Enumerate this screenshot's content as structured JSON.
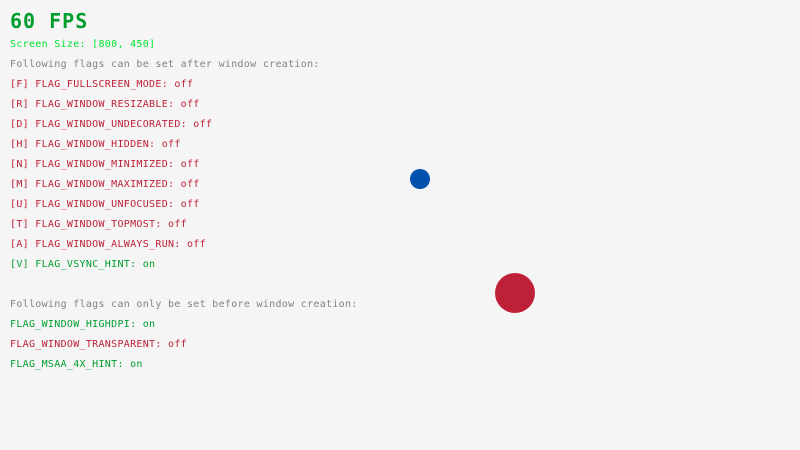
{
  "fps": "60 FPS",
  "screen_size": "Screen Size: [800, 450]",
  "after_header": "Following flags can be set after window creation:",
  "after_flags": [
    {
      "text": "[F] FLAG_FULLSCREEN_MODE: off",
      "state": "off"
    },
    {
      "text": "[R] FLAG_WINDOW_RESIZABLE: off",
      "state": "off"
    },
    {
      "text": "[D] FLAG_WINDOW_UNDECORATED: off",
      "state": "off"
    },
    {
      "text": "[H] FLAG_WINDOW_HIDDEN: off",
      "state": "off"
    },
    {
      "text": "[N] FLAG_WINDOW_MINIMIZED: off",
      "state": "off"
    },
    {
      "text": "[M] FLAG_WINDOW_MAXIMIZED: off",
      "state": "off"
    },
    {
      "text": "[U] FLAG_WINDOW_UNFOCUSED: off",
      "state": "off"
    },
    {
      "text": "[T] FLAG_WINDOW_TOPMOST: off",
      "state": "off"
    },
    {
      "text": "[A] FLAG_WINDOW_ALWAYS_RUN: off",
      "state": "off"
    },
    {
      "text": "[V] FLAG_VSYNC_HINT: on",
      "state": "on"
    }
  ],
  "before_header": "Following flags can only be set before window creation:",
  "before_flags": [
    {
      "text": "FLAG_WINDOW_HIGHDPI: on",
      "state": "on"
    },
    {
      "text": "FLAG_WINDOW_TRANSPARENT: off",
      "state": "off"
    },
    {
      "text": "FLAG_MSAA_4X_HINT: on",
      "state": "on"
    }
  ],
  "colors": {
    "on": "#009e2f",
    "off": "#be2137",
    "blue_ball": "#0052ac",
    "red_ball": "#be2137",
    "background": "#f5f5f5"
  }
}
